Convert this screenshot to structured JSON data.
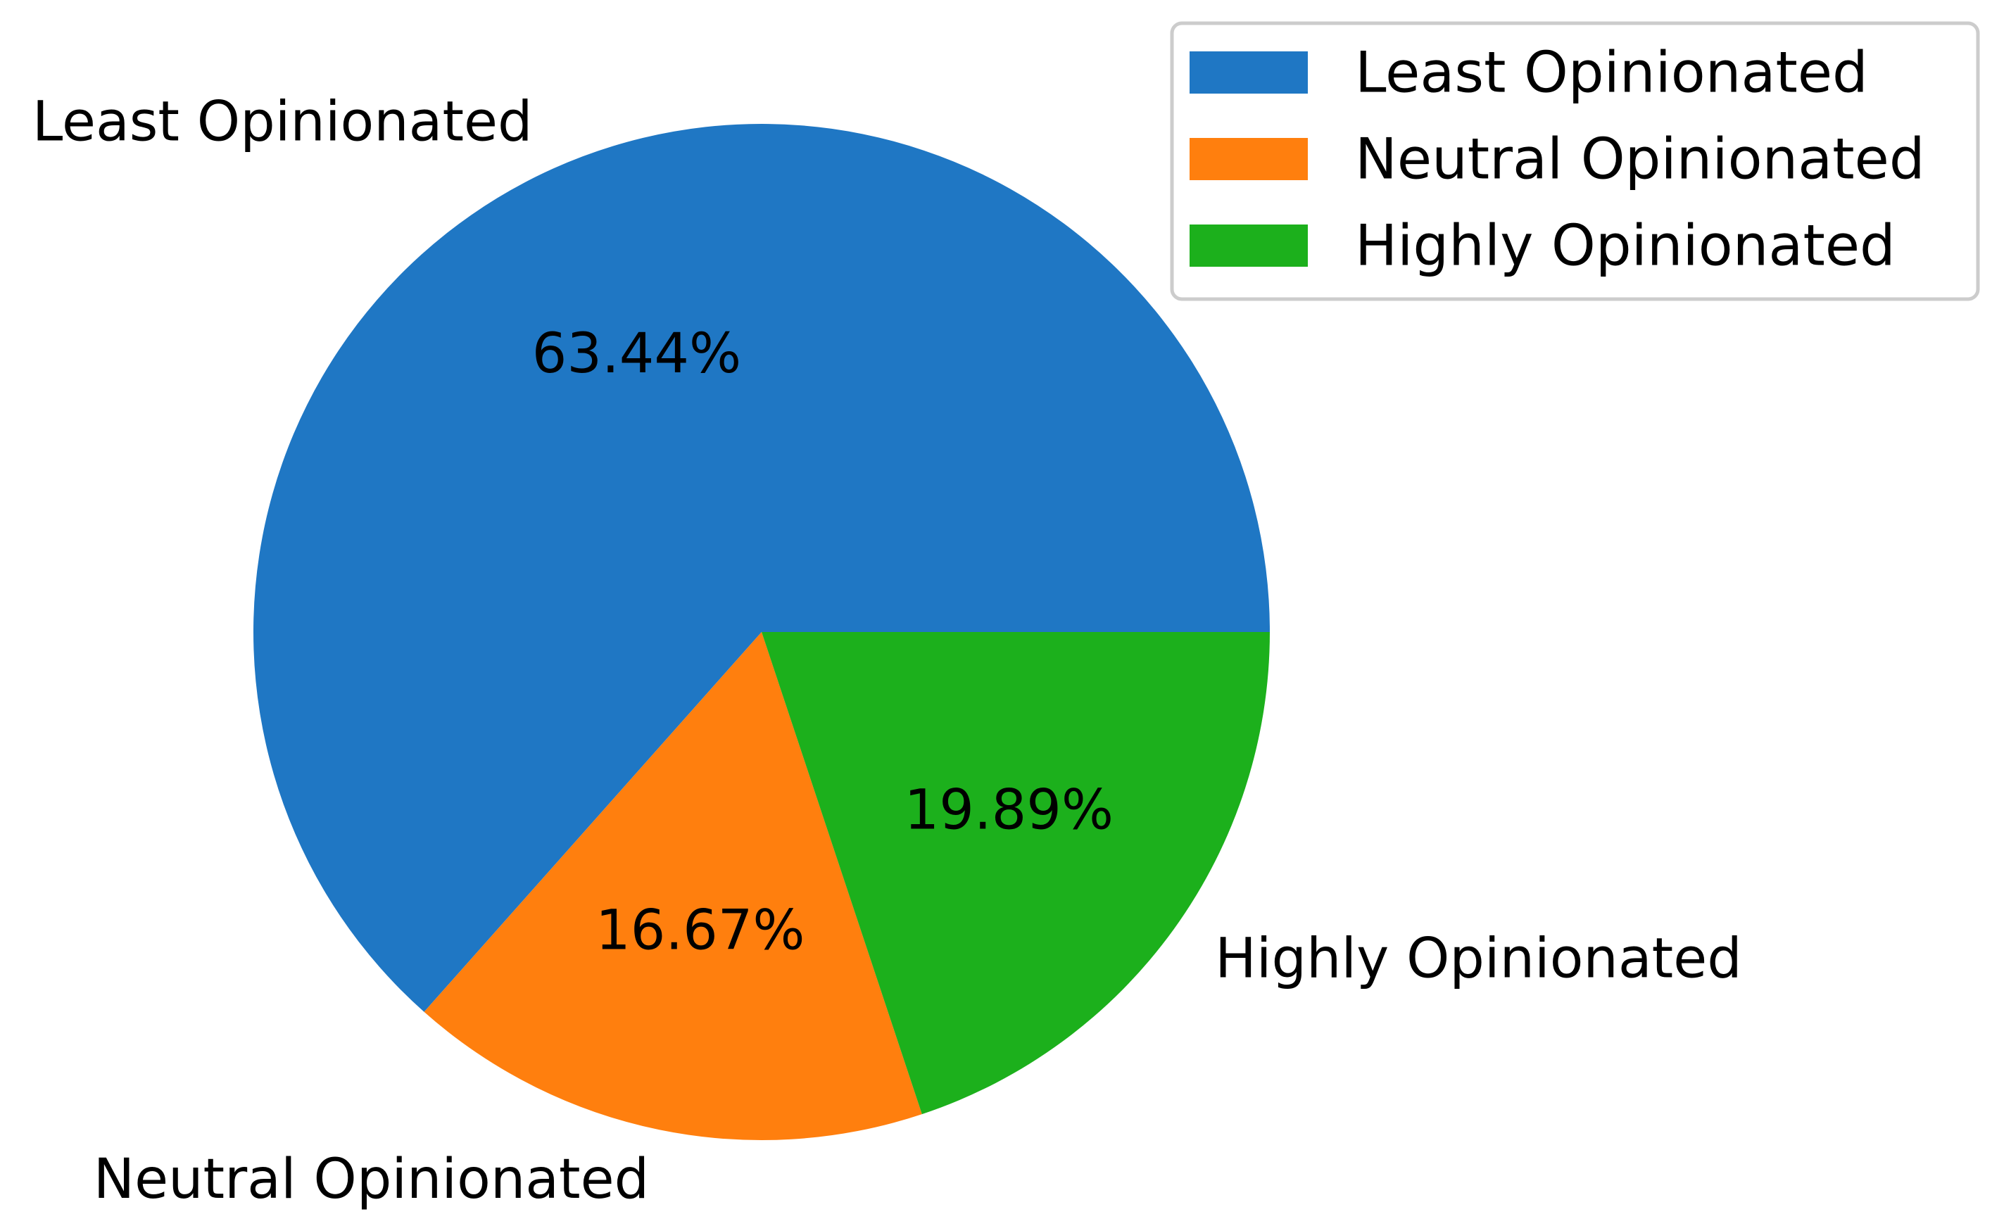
{
  "chart_data": {
    "type": "pie",
    "title": "",
    "slices": [
      {
        "label": "Least Opinionated",
        "value": 63.44,
        "value_text": "63.44%",
        "color": "#1f77c4"
      },
      {
        "label": "Neutral Opinionated",
        "value": 16.67,
        "value_text": "16.67%",
        "color": "#ff7f0e"
      },
      {
        "label": "Highly Opinionated",
        "value": 19.89,
        "value_text": "19.89%",
        "color": "#1cb01c"
      }
    ],
    "start_angle_deg": 0,
    "direction": "counterclockwise",
    "legend": {
      "placement": "top-right",
      "entries": [
        "Least Opinionated",
        "Neutral Opinionated",
        "Highly Opinionated"
      ]
    }
  }
}
